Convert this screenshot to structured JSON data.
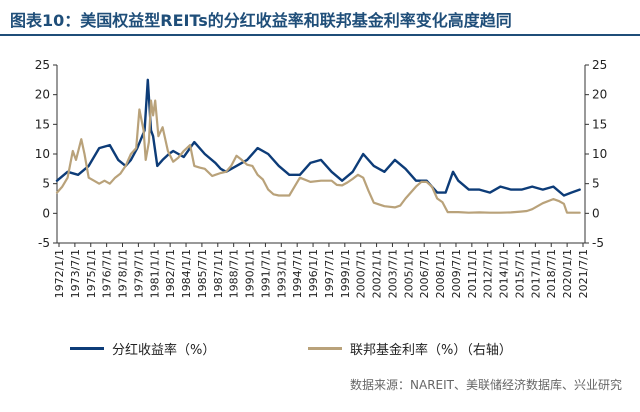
{
  "title": "图表10：美国权益型REITs的分红收益率和联邦基金利率变化高度趋同",
  "source": "数据来源：NAREIT、美联储经济数据库、兴业研究",
  "colors": {
    "title": "#1f4e79",
    "dividend": "#0d3c78",
    "fedfunds": "#b9a27a",
    "axis": "#333333"
  },
  "chart_data": {
    "type": "line",
    "title": "",
    "xlabel": "",
    "ylabel": "",
    "y_left_lim": [
      -5,
      25
    ],
    "y_right_lim": [
      -5,
      25
    ],
    "y_ticks": [
      -5,
      0,
      5,
      10,
      15,
      20,
      25
    ],
    "grid": false,
    "legend_position": "bottom",
    "x_tick_labels": [
      "1972/1/1",
      "1973/7/1",
      "1975/1/1",
      "1976/7/1",
      "1978/1/1",
      "1979/7/1",
      "1981/1/1",
      "1982/7/1",
      "1984/1/1",
      "1985/7/1",
      "1987/1/1",
      "1988/7/1",
      "1990/1/1",
      "1991/7/1",
      "1993/1/1",
      "1994/7/1",
      "1996/1/1",
      "1997/7/1",
      "1999/1/1",
      "2000/7/1",
      "2002/1/1",
      "2003/7/1",
      "2005/1/1",
      "2006/7/1",
      "2008/1/1",
      "2009/7/1",
      "2011/1/1",
      "2012/7/1",
      "2014/1/1",
      "2015/7/1",
      "2017/1/1",
      "2018/7/1",
      "2020/1/1",
      "2021/7/1"
    ],
    "series": [
      {
        "name": "分红收益率（%）",
        "axis": "left",
        "x": [
          1972.0,
          1973.0,
          1974.0,
          1975.0,
          1976.0,
          1977.0,
          1977.8,
          1978.5,
          1979.0,
          1979.6,
          1980.3,
          1980.6,
          1980.9,
          1981.1,
          1981.5,
          1982.0,
          1982.6,
          1983.0,
          1984.0,
          1985.0,
          1986.0,
          1987.0,
          1987.5,
          1988.0,
          1989.0,
          1990.0,
          1991.0,
          1992.0,
          1993.0,
          1994.0,
          1995.0,
          1996.0,
          1997.0,
          1998.0,
          1999.0,
          2000.0,
          2001.0,
          2002.0,
          2003.0,
          2004.0,
          2005.0,
          2006.0,
          2007.0,
          2008.0,
          2008.8,
          2009.5,
          2010.0,
          2011.0,
          2012.0,
          2013.0,
          2014.0,
          2015.0,
          2016.0,
          2017.0,
          2018.0,
          2019.0,
          2020.0,
          2020.7,
          2021.5
        ],
        "values": [
          5.5,
          7.0,
          6.5,
          8.0,
          11.0,
          11.5,
          9.0,
          8.0,
          9.0,
          11.0,
          14.0,
          22.5,
          14.0,
          13.0,
          8.0,
          9.0,
          10.0,
          10.5,
          9.5,
          12.0,
          10.0,
          8.5,
          7.5,
          7.0,
          8.0,
          9.0,
          11.0,
          10.0,
          8.0,
          6.5,
          6.5,
          8.5,
          9.0,
          7.0,
          5.5,
          7.0,
          10.0,
          8.0,
          7.0,
          9.0,
          7.5,
          5.5,
          5.5,
          3.5,
          3.5,
          7.0,
          5.5,
          4.0,
          4.0,
          3.5,
          4.5,
          4.0,
          4.0,
          4.5,
          4.0,
          4.5,
          3.0,
          3.5,
          4.0
        ]
      },
      {
        "name": "联邦基金利率（%）（右轴）",
        "axis": "right",
        "x": [
          1972.0,
          1972.5,
          1973.0,
          1973.5,
          1973.8,
          1974.3,
          1974.6,
          1975.0,
          1975.5,
          1976.0,
          1976.5,
          1977.0,
          1977.5,
          1978.0,
          1978.5,
          1979.0,
          1979.5,
          1979.8,
          1980.2,
          1980.4,
          1980.7,
          1980.9,
          1981.1,
          1981.3,
          1981.6,
          1982.0,
          1982.5,
          1983.0,
          1983.5,
          1984.0,
          1984.6,
          1985.0,
          1985.5,
          1986.0,
          1986.7,
          1987.0,
          1987.5,
          1988.0,
          1988.5,
          1989.0,
          1989.5,
          1990.0,
          1990.5,
          1991.0,
          1991.5,
          1992.0,
          1992.5,
          1993.0,
          1994.0,
          1994.5,
          1995.0,
          1996.0,
          1997.0,
          1998.0,
          1998.5,
          1999.0,
          1999.5,
          2000.0,
          2000.5,
          2001.0,
          2001.5,
          2002.0,
          2003.0,
          2004.0,
          2004.5,
          2005.0,
          2006.0,
          2006.5,
          2007.0,
          2007.5,
          2008.0,
          2008.5,
          2009.0,
          2010.0,
          2011.0,
          2012.0,
          2013.0,
          2014.0,
          2015.0,
          2015.9,
          2016.5,
          2017.0,
          2018.0,
          2019.0,
          2019.5,
          2020.0,
          2020.3,
          2021.0,
          2021.5
        ],
        "values": [
          3.5,
          4.5,
          6.0,
          10.5,
          9.0,
          12.5,
          10.0,
          6.0,
          5.5,
          5.0,
          5.5,
          5.0,
          6.0,
          6.7,
          8.0,
          10.0,
          11.0,
          17.5,
          14.0,
          9.0,
          12.0,
          19.0,
          16.5,
          19.0,
          13.0,
          14.5,
          10.5,
          8.7,
          9.4,
          10.5,
          11.5,
          8.0,
          7.7,
          7.5,
          6.3,
          6.5,
          6.8,
          7.0,
          8.0,
          9.7,
          9.0,
          8.2,
          8.0,
          6.5,
          5.7,
          4.0,
          3.2,
          3.0,
          3.0,
          4.5,
          6.0,
          5.3,
          5.5,
          5.5,
          4.8,
          4.7,
          5.2,
          5.8,
          6.5,
          6.0,
          3.8,
          1.8,
          1.2,
          1.0,
          1.3,
          2.5,
          4.5,
          5.3,
          5.3,
          4.5,
          2.5,
          1.9,
          0.2,
          0.2,
          0.1,
          0.15,
          0.1,
          0.1,
          0.15,
          0.3,
          0.4,
          0.7,
          1.7,
          2.4,
          2.1,
          1.6,
          0.1,
          0.1,
          0.1
        ]
      }
    ]
  }
}
